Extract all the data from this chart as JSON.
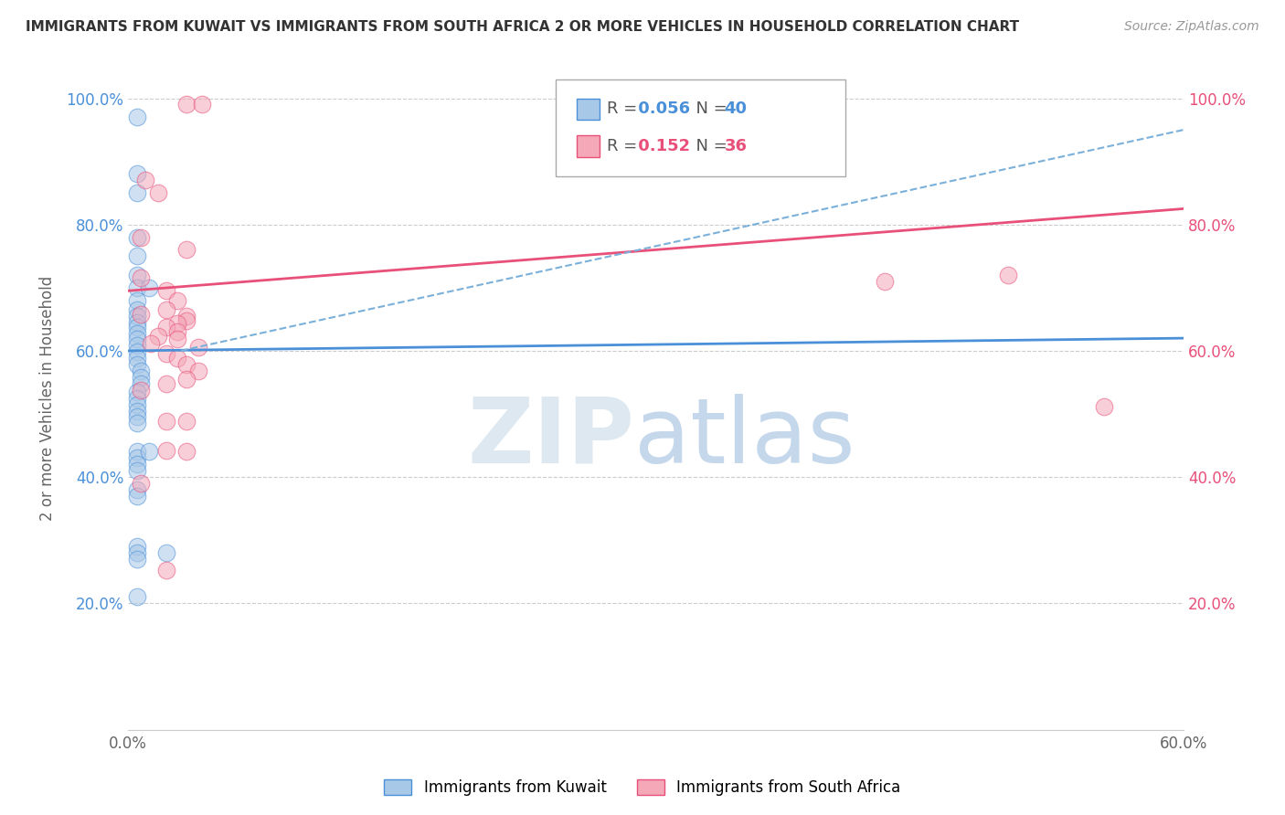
{
  "title": "IMMIGRANTS FROM KUWAIT VS IMMIGRANTS FROM SOUTH AFRICA 2 OR MORE VEHICLES IN HOUSEHOLD CORRELATION CHART",
  "source": "Source: ZipAtlas.com",
  "xlabel_blue": "Immigrants from Kuwait",
  "xlabel_pink": "Immigrants from South Africa",
  "ylabel": "2 or more Vehicles in Household",
  "R_blue": 0.056,
  "N_blue": 40,
  "R_pink": 0.152,
  "N_pink": 36,
  "xlim": [
    0.0,
    0.6
  ],
  "ylim": [
    0.0,
    1.05
  ],
  "xticks": [
    0.0,
    0.1,
    0.2,
    0.3,
    0.4,
    0.5,
    0.6
  ],
  "yticks": [
    0.0,
    0.2,
    0.4,
    0.6,
    0.8,
    1.0
  ],
  "ytick_labels_left": [
    "",
    "20.0%",
    "40.0%",
    "60.0%",
    "80.0%",
    "100.0%"
  ],
  "ytick_labels_right": [
    "",
    "20.0%",
    "40.0%",
    "60.0%",
    "80.0%",
    "100.0%"
  ],
  "xtick_labels": [
    "0.0%",
    "",
    "",
    "",
    "",
    "",
    "60.0%"
  ],
  "color_blue": "#a8c8e8",
  "color_pink": "#f4a8b8",
  "trendline_blue": "#4a90d9",
  "trendline_pink": "#e8507a",
  "dashed_color": "#7ab0d9",
  "watermark_zip": "ZIP",
  "watermark_atlas": "atlas",
  "blue_scatter": [
    [
      0.005,
      0.97
    ],
    [
      0.005,
      0.88
    ],
    [
      0.005,
      0.85
    ],
    [
      0.005,
      0.78
    ],
    [
      0.005,
      0.75
    ],
    [
      0.005,
      0.72
    ],
    [
      0.005,
      0.7
    ],
    [
      0.012,
      0.7
    ],
    [
      0.005,
      0.68
    ],
    [
      0.005,
      0.665
    ],
    [
      0.005,
      0.655
    ],
    [
      0.005,
      0.645
    ],
    [
      0.005,
      0.638
    ],
    [
      0.005,
      0.628
    ],
    [
      0.005,
      0.618
    ],
    [
      0.005,
      0.608
    ],
    [
      0.005,
      0.598
    ],
    [
      0.005,
      0.588
    ],
    [
      0.005,
      0.578
    ],
    [
      0.007,
      0.568
    ],
    [
      0.007,
      0.558
    ],
    [
      0.007,
      0.548
    ],
    [
      0.005,
      0.535
    ],
    [
      0.005,
      0.525
    ],
    [
      0.005,
      0.515
    ],
    [
      0.005,
      0.505
    ],
    [
      0.005,
      0.495
    ],
    [
      0.005,
      0.485
    ],
    [
      0.005,
      0.44
    ],
    [
      0.005,
      0.43
    ],
    [
      0.005,
      0.42
    ],
    [
      0.005,
      0.41
    ],
    [
      0.005,
      0.38
    ],
    [
      0.005,
      0.37
    ],
    [
      0.012,
      0.44
    ],
    [
      0.005,
      0.29
    ],
    [
      0.005,
      0.28
    ],
    [
      0.005,
      0.27
    ],
    [
      0.022,
      0.28
    ],
    [
      0.005,
      0.21
    ]
  ],
  "pink_scatter": [
    [
      0.033,
      0.99
    ],
    [
      0.042,
      0.99
    ],
    [
      0.01,
      0.87
    ],
    [
      0.017,
      0.85
    ],
    [
      0.007,
      0.78
    ],
    [
      0.033,
      0.76
    ],
    [
      0.007,
      0.715
    ],
    [
      0.022,
      0.695
    ],
    [
      0.028,
      0.68
    ],
    [
      0.022,
      0.665
    ],
    [
      0.007,
      0.658
    ],
    [
      0.033,
      0.655
    ],
    [
      0.033,
      0.648
    ],
    [
      0.028,
      0.643
    ],
    [
      0.022,
      0.638
    ],
    [
      0.028,
      0.63
    ],
    [
      0.017,
      0.623
    ],
    [
      0.028,
      0.618
    ],
    [
      0.013,
      0.612
    ],
    [
      0.04,
      0.605
    ],
    [
      0.022,
      0.596
    ],
    [
      0.028,
      0.588
    ],
    [
      0.033,
      0.578
    ],
    [
      0.04,
      0.568
    ],
    [
      0.033,
      0.555
    ],
    [
      0.022,
      0.548
    ],
    [
      0.007,
      0.538
    ],
    [
      0.022,
      0.488
    ],
    [
      0.033,
      0.488
    ],
    [
      0.43,
      0.71
    ],
    [
      0.5,
      0.72
    ],
    [
      0.555,
      0.512
    ],
    [
      0.022,
      0.442
    ],
    [
      0.033,
      0.44
    ],
    [
      0.007,
      0.39
    ],
    [
      0.022,
      0.252
    ]
  ],
  "blue_line": [
    0.0,
    0.6,
    0.6,
    0.62
  ],
  "pink_line": [
    0.0,
    0.695,
    0.6,
    0.825
  ],
  "dash_line": [
    0.03,
    0.6,
    0.6,
    0.95
  ]
}
